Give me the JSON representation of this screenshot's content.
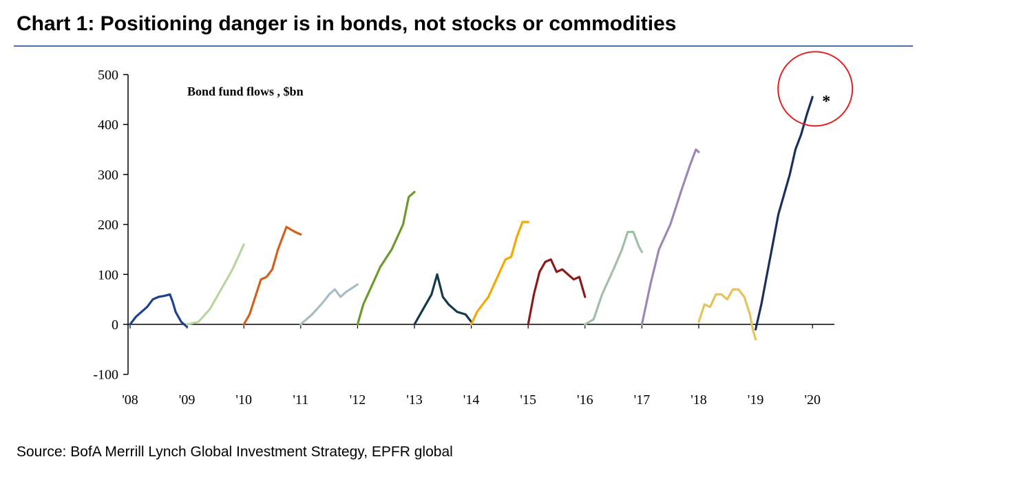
{
  "title": "Chart 1: Positioning danger is in bonds, not stocks or commodities",
  "source": "Source: BofA Merrill Lynch Global Investment Strategy, EPFR global",
  "chart_data": {
    "type": "line",
    "title": "Chart 1: Positioning danger is in bonds, not stocks or commodities",
    "ylabel": "Bond fund flows , $bn",
    "xlabel": "",
    "ylim": [
      -100,
      500
    ],
    "xlim": [
      2008,
      2020.4
    ],
    "y_ticks": [
      -100,
      0,
      100,
      200,
      300,
      400,
      500
    ],
    "y_tick_labels": [
      "-100",
      "0",
      "100",
      "200",
      "300",
      "400",
      "500"
    ],
    "x_ticks": [
      2008,
      2009,
      2010,
      2011,
      2012,
      2013,
      2014,
      2015,
      2016,
      2017,
      2018,
      2019,
      2020
    ],
    "x_tick_labels": [
      "'08",
      "'09",
      "'10",
      "'11",
      "'12",
      "'13",
      "'14",
      "'15",
      "'16",
      "'17",
      "'18",
      "'19",
      "'20"
    ],
    "grid": false,
    "annotation": {
      "text": "*",
      "highlight": "circle around 2020 endpoint",
      "x": 2020.0,
      "y": 455
    },
    "series": [
      {
        "color": "#1f3f8f",
        "x": [
          2008.0,
          2008.1,
          2008.2,
          2008.3,
          2008.4,
          2008.5,
          2008.6,
          2008.7,
          2008.75,
          2008.8,
          2008.9,
          2009.0
        ],
        "y": [
          0,
          15,
          25,
          35,
          50,
          55,
          57,
          60,
          45,
          25,
          5,
          -5
        ]
      },
      {
        "color": "#b8d4a0",
        "x": [
          2009.0,
          2009.2,
          2009.4,
          2009.6,
          2009.8,
          2010.0
        ],
        "y": [
          0,
          5,
          30,
          70,
          110,
          160
        ]
      },
      {
        "color": "#d2601a",
        "x": [
          2010.0,
          2010.1,
          2010.3,
          2010.4,
          2010.5,
          2010.6,
          2010.75,
          2010.9,
          2011.0
        ],
        "y": [
          0,
          20,
          90,
          95,
          110,
          150,
          195,
          185,
          180
        ]
      },
      {
        "color": "#a9bcc4",
        "x": [
          2011.0,
          2011.2,
          2011.4,
          2011.5,
          2011.6,
          2011.7,
          2011.8,
          2012.0
        ],
        "y": [
          0,
          20,
          45,
          60,
          70,
          55,
          65,
          80
        ]
      },
      {
        "color": "#6b9a2a",
        "x": [
          2012.0,
          2012.1,
          2012.3,
          2012.4,
          2012.6,
          2012.8,
          2012.9,
          2013.0
        ],
        "y": [
          0,
          40,
          90,
          115,
          150,
          200,
          255,
          265
        ]
      },
      {
        "color": "#13394a",
        "x": [
          2013.0,
          2013.15,
          2013.3,
          2013.4,
          2013.5,
          2013.6,
          2013.75,
          2013.9,
          2014.0
        ],
        "y": [
          0,
          30,
          60,
          100,
          55,
          40,
          25,
          20,
          5
        ]
      },
      {
        "color": "#f5a800",
        "x": [
          2014.0,
          2014.1,
          2014.3,
          2014.5,
          2014.6,
          2014.7,
          2014.8,
          2014.9,
          2015.0
        ],
        "y": [
          0,
          25,
          55,
          105,
          130,
          135,
          175,
          205,
          205
        ]
      },
      {
        "color": "#8b1a1a",
        "x": [
          2015.0,
          2015.1,
          2015.2,
          2015.3,
          2015.4,
          2015.5,
          2015.6,
          2015.7,
          2015.8,
          2015.9,
          2016.0
        ],
        "y": [
          0,
          60,
          105,
          125,
          130,
          105,
          110,
          100,
          90,
          95,
          55
        ]
      },
      {
        "color": "#9fbfa6",
        "x": [
          2016.0,
          2016.15,
          2016.3,
          2016.5,
          2016.65,
          2016.75,
          2016.85,
          2016.95,
          2017.0
        ],
        "y": [
          0,
          10,
          60,
          110,
          150,
          185,
          185,
          155,
          145
        ]
      },
      {
        "color": "#9b87b5",
        "x": [
          2017.0,
          2017.15,
          2017.3,
          2017.5,
          2017.7,
          2017.85,
          2017.95,
          2018.0
        ],
        "y": [
          0,
          80,
          150,
          200,
          270,
          320,
          350,
          345
        ]
      },
      {
        "color": "#e3c35a",
        "x": [
          2018.0,
          2018.1,
          2018.2,
          2018.3,
          2018.4,
          2018.5,
          2018.6,
          2018.7,
          2018.8,
          2018.9,
          2018.95,
          2019.0
        ],
        "y": [
          5,
          40,
          35,
          60,
          60,
          50,
          70,
          70,
          55,
          20,
          -10,
          -30
        ]
      },
      {
        "color": "#1b2f5e",
        "x": [
          2019.0,
          2019.1,
          2019.2,
          2019.3,
          2019.4,
          2019.5,
          2019.6,
          2019.7,
          2019.8,
          2019.9,
          2020.0
        ],
        "y": [
          -10,
          40,
          100,
          160,
          220,
          260,
          300,
          350,
          380,
          420,
          455
        ]
      }
    ]
  }
}
